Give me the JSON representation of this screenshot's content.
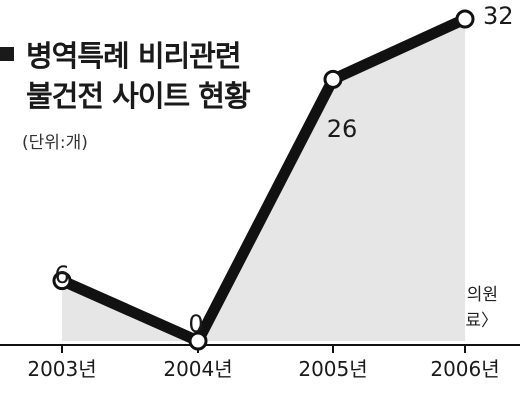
{
  "title": {
    "line1": "병역특례 비리관련",
    "line2": "불건전 사이트 현황"
  },
  "unit": "(단위:개)",
  "source": {
    "line1": "〈자료:한나라당 공성진의원",
    "line2": "국감요구 자료〉"
  },
  "colors": {
    "line": "#111111",
    "area": "#e6e6e6",
    "marker_fill": "#ffffff"
  },
  "chart_data": {
    "type": "area",
    "categories": [
      "2003년",
      "2004년",
      "2005년",
      "2006년"
    ],
    "values": [
      6,
      0,
      26,
      32
    ],
    "title": "병역특례 비리관련 불건전 사이트 현황",
    "xlabel": "",
    "ylabel": "",
    "unit": "(단위:개)",
    "ylim": [
      0,
      32
    ],
    "grid": false,
    "data_labels": true
  }
}
